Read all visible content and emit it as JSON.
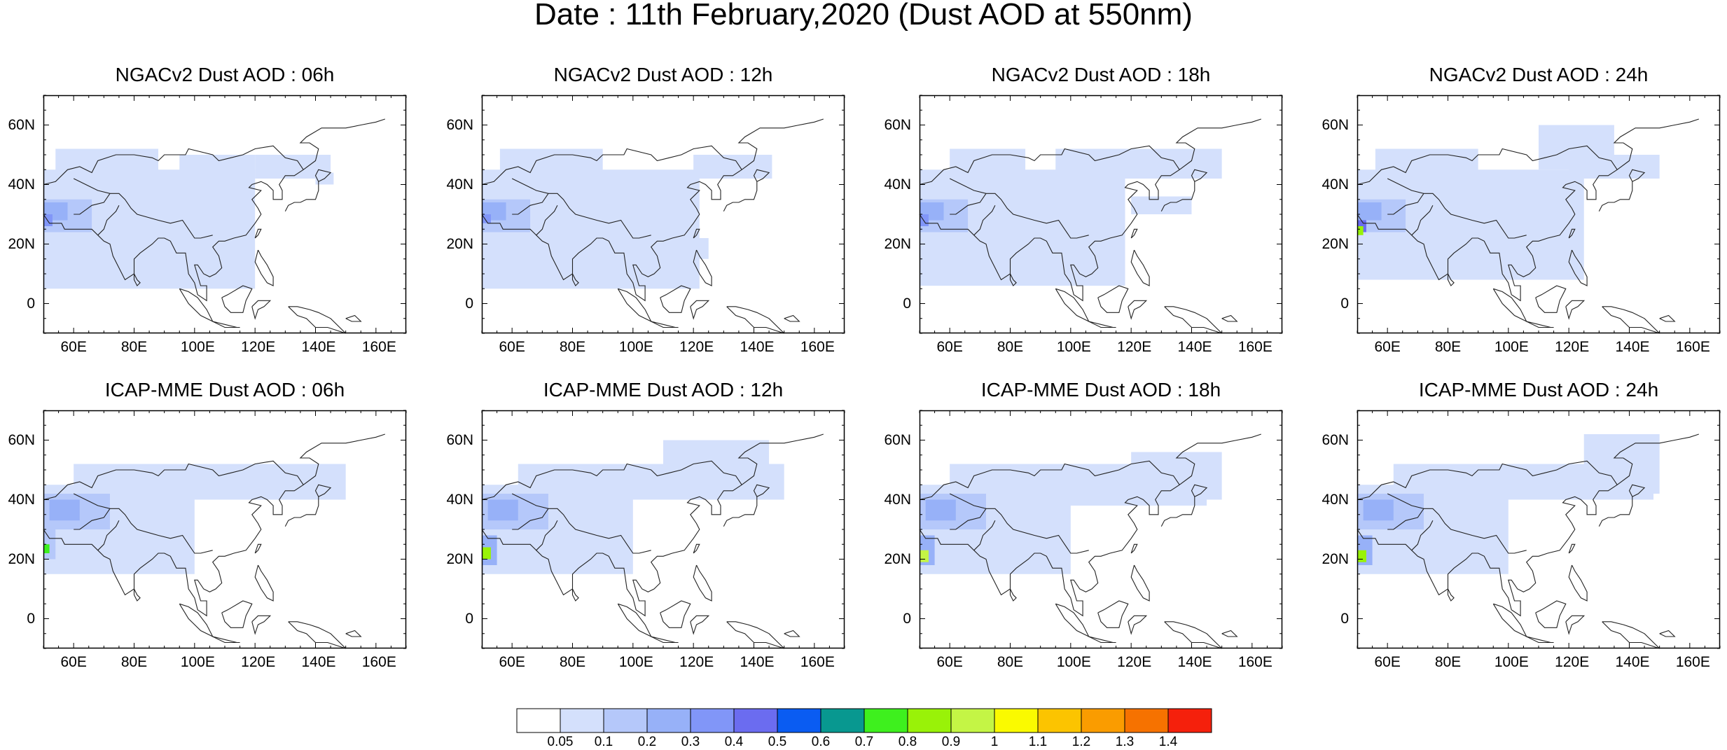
{
  "title": "Date : 11th February,2020 (Dust AOD at 550nm)",
  "panels": [
    {
      "title": "NGACv2 Dust AOD : 06h",
      "model": "NGACv2",
      "lead": "06h"
    },
    {
      "title": "NGACv2 Dust AOD : 12h",
      "model": "NGACv2",
      "lead": "12h"
    },
    {
      "title": "NGACv2 Dust AOD : 18h",
      "model": "NGACv2",
      "lead": "18h"
    },
    {
      "title": "NGACv2 Dust AOD : 24h",
      "model": "NGACv2",
      "lead": "24h"
    },
    {
      "title": "ICAP-MME Dust AOD : 06h",
      "model": "ICAP-MME",
      "lead": "06h"
    },
    {
      "title": "ICAP-MME Dust AOD : 12h",
      "model": "ICAP-MME",
      "lead": "12h"
    },
    {
      "title": "ICAP-MME Dust AOD : 18h",
      "model": "ICAP-MME",
      "lead": "18h"
    },
    {
      "title": "ICAP-MME Dust AOD : 24h",
      "model": "ICAP-MME",
      "lead": "24h"
    }
  ],
  "axes": {
    "lon_ticks": [
      "60E",
      "80E",
      "100E",
      "120E",
      "140E",
      "160E"
    ],
    "lat_ticks": [
      "60N",
      "40N",
      "20N",
      "0"
    ],
    "lon_range": [
      50,
      170
    ],
    "lat_range": [
      -10,
      70
    ]
  },
  "colorbar": {
    "labels": [
      "0.05",
      "0.1",
      "0.2",
      "0.3",
      "0.4",
      "0.5",
      "0.6",
      "0.7",
      "0.8",
      "0.9",
      "1",
      "1.1",
      "1.2",
      "1.3",
      "1.4"
    ],
    "colors": [
      "#ffffff",
      "#d4e0fc",
      "#b5c8fa",
      "#97b1f8",
      "#8196f8",
      "#6b6cf0",
      "#0a5cf2",
      "#089890",
      "#3ef01e",
      "#99f208",
      "#c4f545",
      "#fafa00",
      "#fcc400",
      "#fa9c00",
      "#f67200",
      "#f5200c"
    ]
  }
}
